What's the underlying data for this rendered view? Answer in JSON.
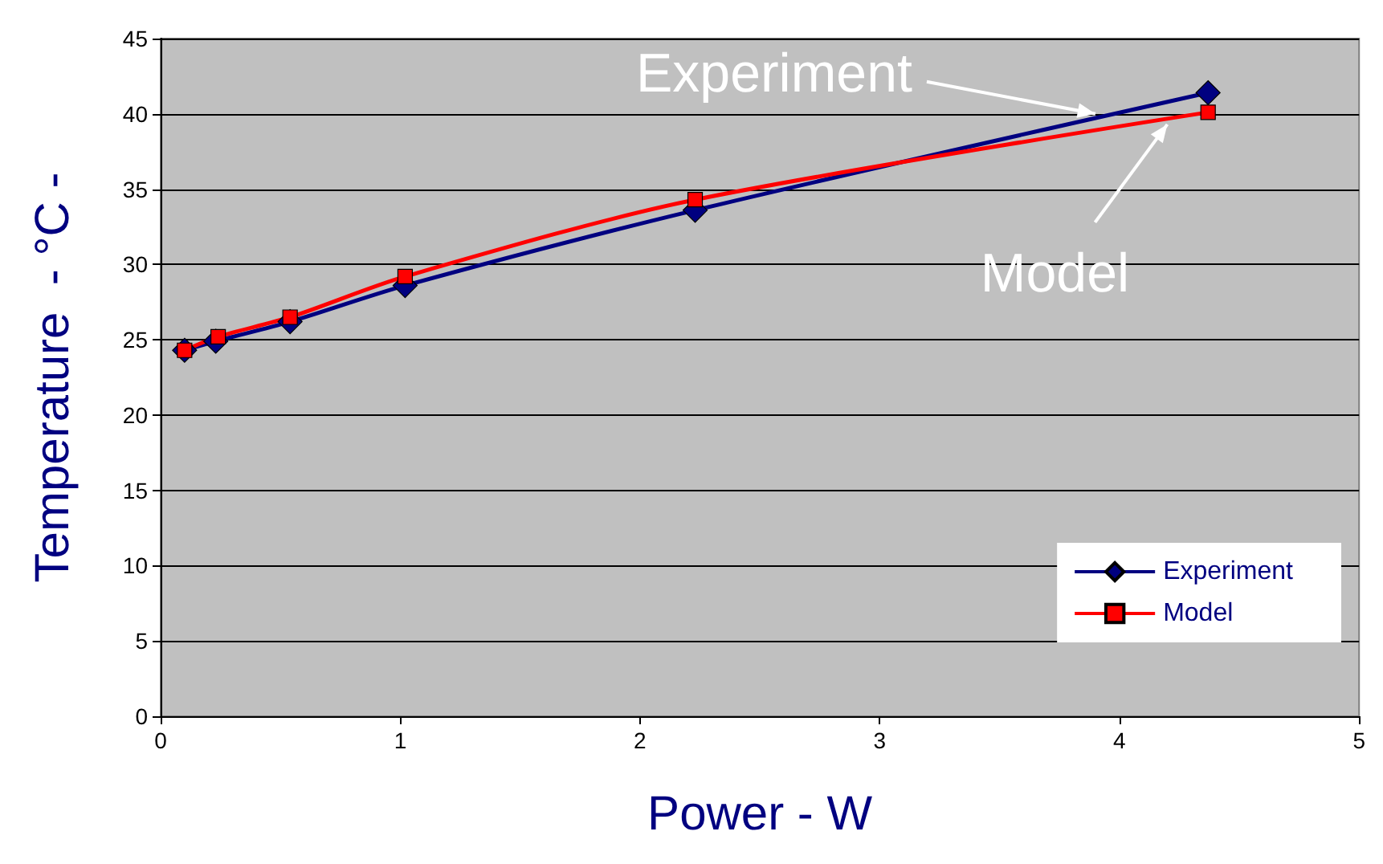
{
  "chart_data": {
    "type": "line",
    "xlabel": "Power - W",
    "ylabel": "Temperature  - °C -",
    "xlim": [
      0,
      5
    ],
    "xticks": [
      0,
      1,
      2,
      3,
      4,
      5
    ],
    "ylim": [
      0,
      45
    ],
    "yticks": [
      0,
      5,
      10,
      15,
      20,
      25,
      30,
      35,
      40,
      45
    ],
    "grid": "y",
    "legend": "bottom right",
    "series": [
      {
        "name": "Experiment",
        "color": "#000080",
        "marker": "diamond",
        "x": [
          0.1,
          0.23,
          0.54,
          1.02,
          2.23,
          4.37
        ],
        "values": [
          24.3,
          24.9,
          26.2,
          28.6,
          33.6,
          41.4
        ]
      },
      {
        "name": "Model",
        "color": "#ff0000",
        "marker": "square",
        "x": [
          0.1,
          0.24,
          0.54,
          1.02,
          2.23,
          4.37
        ],
        "values": [
          24.3,
          25.2,
          26.5,
          29.2,
          34.3,
          40.1
        ]
      }
    ],
    "annotations": [
      {
        "text": "Experiment",
        "x": 3.9,
        "y": 40
      },
      {
        "text": "Model",
        "x": 4.2,
        "y": 39.3
      }
    ]
  }
}
